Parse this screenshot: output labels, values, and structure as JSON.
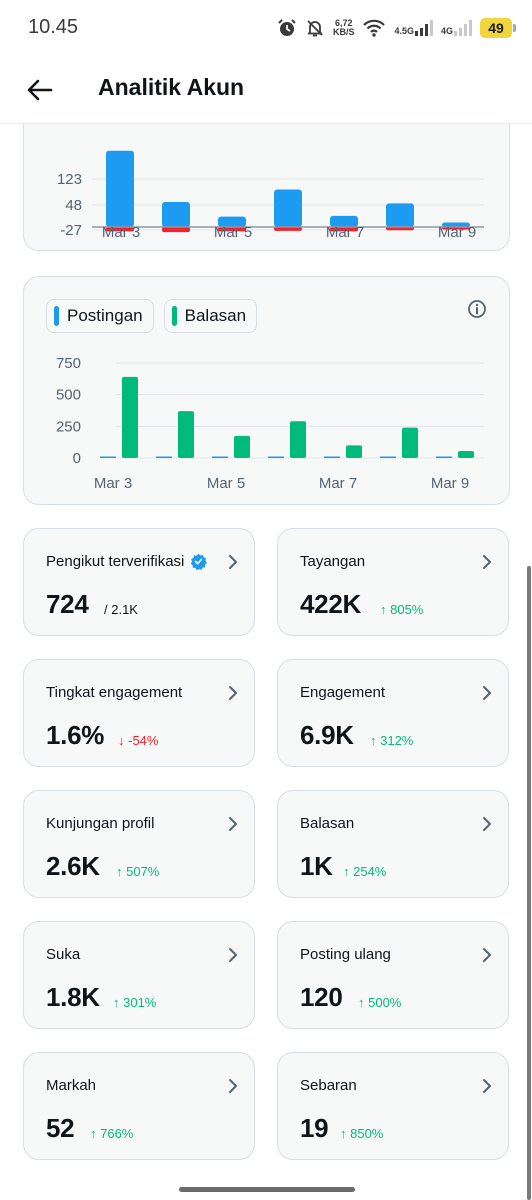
{
  "status_bar": {
    "time": "10.45",
    "net_speed_value": "6,72",
    "net_speed_unit": "KB/S",
    "sim1_label": "4.5G",
    "sim2_label": "4G",
    "battery": "49",
    "icons": [
      "alarm-icon",
      "mute-icon",
      "wifi-icon",
      "signal-icon",
      "battery-icon"
    ]
  },
  "header": {
    "title": "Analitik Akun",
    "back_icon": "arrow-left-icon"
  },
  "colors": {
    "postingan": "#1d9bf0",
    "balasan": "#00ba7c",
    "negative": "#f4212e",
    "verified": "#1d9bf0"
  },
  "chart_data": [
    {
      "type": "bar",
      "x_ticks": [
        "Mar 3",
        "Mar 5",
        "Mar 7",
        "Mar 9"
      ],
      "y_ticks": [
        "123",
        "48",
        "-27"
      ],
      "series": [
        {
          "values": [
            220,
            72,
            30,
            108,
            32,
            68,
            13
          ],
          "color": "#1d9bf0"
        },
        {
          "values": [
            -15,
            -20,
            -15,
            -12,
            -15,
            -8,
            -3
          ],
          "color": "#f4212e"
        }
      ]
    },
    {
      "type": "bar",
      "x_ticks": [
        "Mar 3",
        "Mar 5",
        "Mar 7",
        "Mar 9"
      ],
      "y_ticks": [
        "750",
        "500",
        "250",
        "0"
      ],
      "ylim": [
        0,
        750
      ],
      "legend": "top-left",
      "series": [
        {
          "name": "Postingan",
          "values": [
            5,
            4,
            3,
            2,
            1,
            2,
            1
          ],
          "color": "#1d9bf0"
        },
        {
          "name": "Balasan",
          "values": [
            640,
            370,
            175,
            290,
            100,
            240,
            55
          ],
          "color": "#00ba7c"
        }
      ]
    }
  ],
  "stats": [
    {
      "label": "Pengikut terverifikasi",
      "value": "724",
      "sub": "/ 2.1K",
      "verified": true
    },
    {
      "label": "Tayangan",
      "value": "422K",
      "delta": "↑ 805%",
      "direction": "up"
    },
    {
      "label": "Tingkat engagement",
      "value": "1.6%",
      "delta": "↓ -54%",
      "direction": "down"
    },
    {
      "label": "Engagement",
      "value": "6.9K",
      "delta": "↑ 312%",
      "direction": "up"
    },
    {
      "label": "Kunjungan profil",
      "value": "2.6K",
      "delta": "↑ 507%",
      "direction": "up"
    },
    {
      "label": "Balasan",
      "value": "1K",
      "delta": "↑ 254%",
      "direction": "up"
    },
    {
      "label": "Suka",
      "value": "1.8K",
      "delta": "↑ 301%",
      "direction": "up"
    },
    {
      "label": "Posting ulang",
      "value": "120",
      "delta": "↑ 500%",
      "direction": "up"
    },
    {
      "label": "Markah",
      "value": "52",
      "delta": "↑ 766%",
      "direction": "up"
    },
    {
      "label": "Sebaran",
      "value": "19",
      "delta": "↑ 850%",
      "direction": "up"
    }
  ]
}
